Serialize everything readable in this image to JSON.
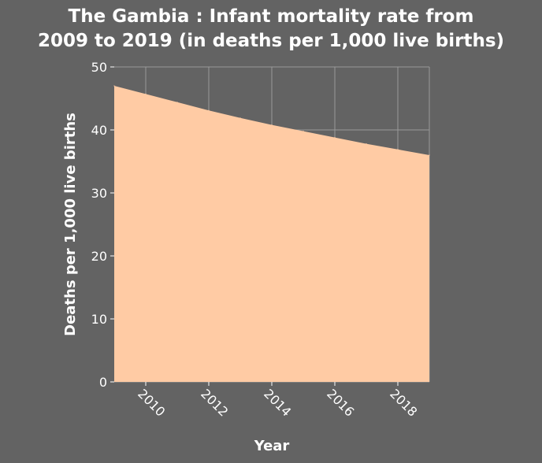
{
  "chart_data": {
    "type": "area",
    "title_lines": [
      "The Gambia : Infant mortality rate from",
      "2009 to 2019 (in deaths per 1,000 live births)"
    ],
    "xlabel": "Year",
    "ylabel": "Deaths per 1,000 live births",
    "x": [
      2009,
      2010,
      2011,
      2012,
      2013,
      2014,
      2015,
      2016,
      2017,
      2018,
      2019
    ],
    "values": [
      47.0,
      45.7,
      44.4,
      43.1,
      41.9,
      40.8,
      39.8,
      38.8,
      37.8,
      36.9,
      36.0
    ],
    "xlim": [
      2009,
      2019
    ],
    "ylim": [
      0,
      50
    ],
    "xticks": [
      2010,
      2012,
      2014,
      2016,
      2018
    ],
    "yticks": [
      0,
      10,
      20,
      30,
      40,
      50
    ],
    "grid": true,
    "legend": "none",
    "colors": {
      "background": "#636363",
      "area_fill": "#ffcba4",
      "grid": "#9a9a9a",
      "text": "#ffffff"
    }
  }
}
